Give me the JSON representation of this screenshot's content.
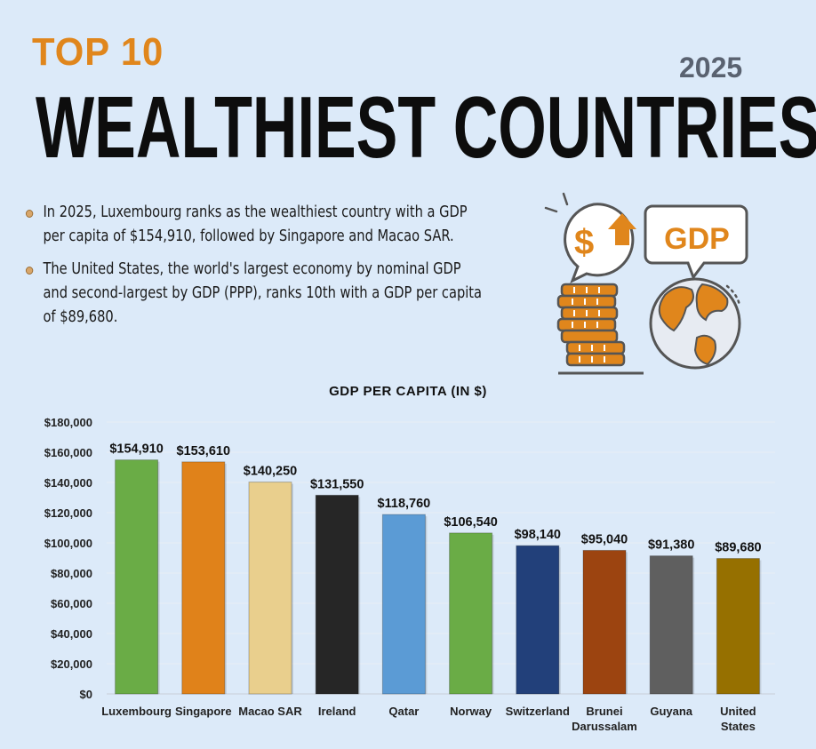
{
  "header": {
    "kicker": "TOP 10",
    "year": "2025",
    "title": "WEALTHIEST COUNTRIES"
  },
  "bullets": [
    "In 2025, Luxembourg ranks as the wealthiest country with a GDP per capita of $154,910, followed by Singapore and Macao SAR.",
    "The United States, the world's largest economy by nominal GDP and second-largest by GDP (PPP), ranks 10th with a GDP per capita of $89,680."
  ],
  "illustration": {
    "dollar_symbol": "$",
    "gdp_label": "GDP"
  },
  "colors": {
    "accent": "#e0861c",
    "background": "#dceaf9"
  },
  "chart_data": {
    "type": "bar",
    "title": "GDP PER CAPITA (IN $)",
    "categories": [
      "Luxembourg",
      "Singapore",
      "Macao SAR",
      "Ireland",
      "Qatar",
      "Norway",
      "Switzerland",
      "Brunei Darussalam",
      "Guyana",
      "United States"
    ],
    "category_lines": [
      [
        "Luxembourg"
      ],
      [
        "Singapore"
      ],
      [
        "Macao SAR"
      ],
      [
        "Ireland"
      ],
      [
        "Qatar"
      ],
      [
        "Norway"
      ],
      [
        "Switzerland"
      ],
      [
        "Brunei",
        "Darussalam"
      ],
      [
        "Guyana"
      ],
      [
        "United",
        "States"
      ]
    ],
    "values": [
      154910,
      153610,
      140250,
      131550,
      118760,
      106540,
      98140,
      95040,
      91380,
      89680
    ],
    "value_labels": [
      "$154,910",
      "$153,610",
      "$140,250",
      "$131,550",
      "$118,760",
      "$106,540",
      "$98,140",
      "$95,040",
      "$91,380",
      "$89,680"
    ],
    "bar_colors": [
      "#6aac46",
      "#e0821a",
      "#e9cf8d",
      "#262626",
      "#5b9bd5",
      "#6aac46",
      "#22407a",
      "#9c4410",
      "#5f5f5f",
      "#967000"
    ],
    "yticks": [
      0,
      20000,
      40000,
      60000,
      80000,
      100000,
      120000,
      140000,
      160000,
      180000
    ],
    "ytick_labels": [
      "$0",
      "$20,000",
      "$40,000",
      "$60,000",
      "$80,000",
      "$100,000",
      "$120,000",
      "$140,000",
      "$160,000",
      "$180,000"
    ],
    "ylim": [
      0,
      180000
    ],
    "grid": true,
    "xlabel": "",
    "ylabel": ""
  }
}
